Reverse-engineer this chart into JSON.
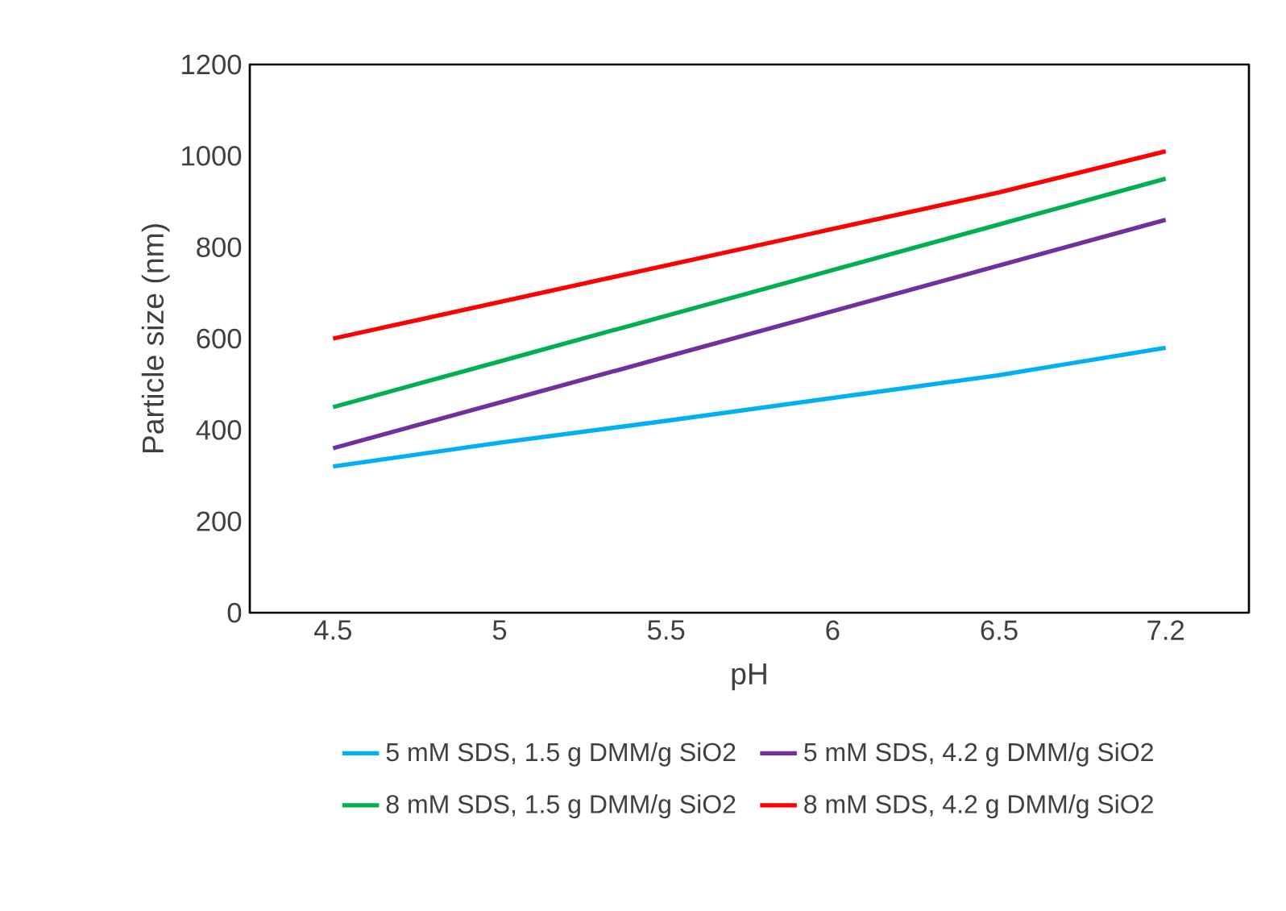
{
  "chart_data": {
    "type": "line",
    "xlabel": "pH",
    "ylabel": "Particle size (nm)",
    "categories": [
      "4.5",
      "5",
      "5.5",
      "6",
      "6.5",
      "7.2"
    ],
    "ylim": [
      0,
      1200
    ],
    "yticks": [
      0,
      200,
      400,
      600,
      800,
      1000,
      1200
    ],
    "legend": "bottom",
    "marker": "none",
    "line_style": "solid",
    "series": [
      {
        "name": "5 mM SDS, 1.5 g DMM/g SiO2",
        "color": "#00b0f0",
        "values": [
          320,
          372,
          420,
          470,
          520,
          580
        ]
      },
      {
        "name": "5 mM SDS, 4.2 g DMM/g SiO2",
        "color": "#7030a0",
        "values": [
          360,
          460,
          560,
          660,
          760,
          860
        ]
      },
      {
        "name": "8 mM SDS, 1.5 g DMM/g SiO2",
        "color": "#00b050",
        "values": [
          450,
          550,
          650,
          750,
          850,
          950
        ]
      },
      {
        "name": "8 mM SDS, 4.2 g DMM/g SiO2",
        "color": "#ff0000",
        "values": [
          600,
          680,
          760,
          840,
          920,
          1010
        ]
      }
    ]
  }
}
